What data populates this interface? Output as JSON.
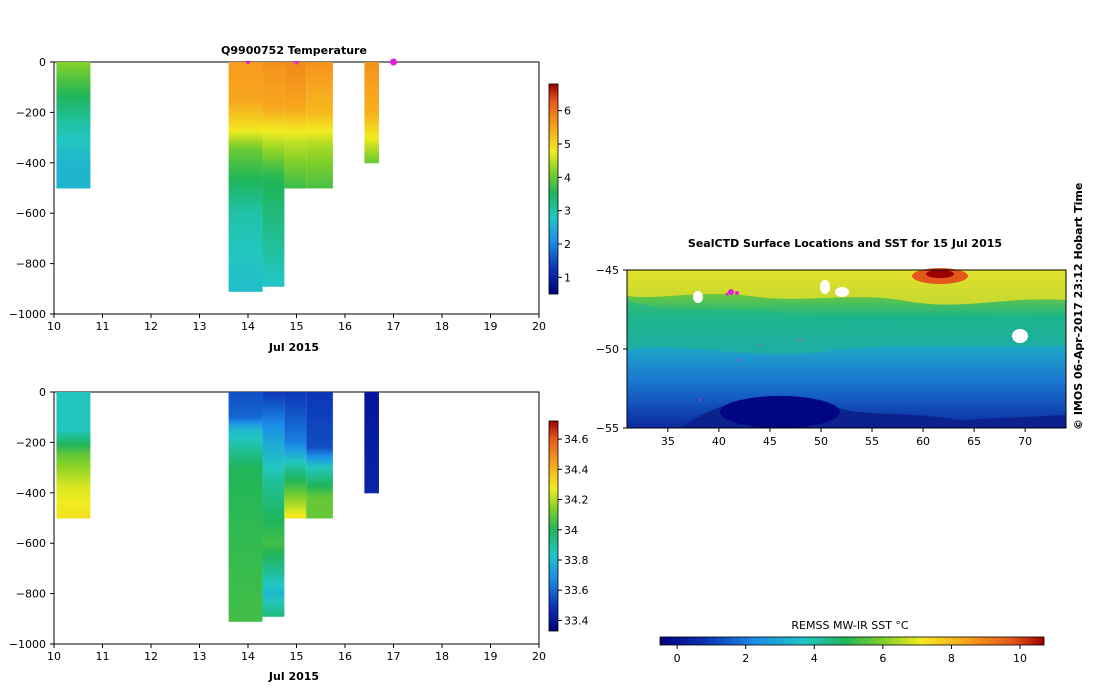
{
  "title": "Q9900752  Temperature",
  "xlabel": "Jul 2015",
  "map_title": "SealCTD Surface Locations and SST for 15 Jul 2015",
  "sst_label": "REMSS MW-IR SST °C",
  "credit": "© IMOS 06-Apr-2017 23:12 Hobart Time",
  "chart_data": [
    {
      "type": "heatmap",
      "variable": "Temperature",
      "xlim": [
        10,
        20
      ],
      "ylim": [
        -1000,
        0
      ],
      "xticks": [
        "10",
        "11",
        "12",
        "13",
        "14",
        "15",
        "16",
        "17",
        "18",
        "19",
        "20"
      ],
      "yticks": [
        "0",
        "−200",
        "−400",
        "−600",
        "−800",
        "−1000"
      ],
      "colorbar_ticks": [
        "1",
        "2",
        "3",
        "4",
        "5",
        "6"
      ],
      "colorbar_range": [
        0.5,
        6.8
      ],
      "surface_markers": [
        14.0,
        15.0,
        17.0
      ],
      "profiles": [
        {
          "x0": 10.05,
          "x1": 10.75,
          "depth": -500,
          "stops": [
            [
              0,
              4.2
            ],
            [
              120,
              3.6
            ],
            [
              250,
              3.0
            ],
            [
              400,
              2.6
            ],
            [
              500,
              2.6
            ]
          ]
        },
        {
          "x0": 13.6,
          "x1": 14.3,
          "depth": -910,
          "stops": [
            [
              0,
              5.6
            ],
            [
              150,
              5.5
            ],
            [
              250,
              5.0
            ],
            [
              350,
              4.0
            ],
            [
              600,
              3.0
            ],
            [
              910,
              2.7
            ]
          ]
        },
        {
          "x0": 14.3,
          "x1": 14.75,
          "depth": -890,
          "stops": [
            [
              0,
              5.7
            ],
            [
              180,
              5.5
            ],
            [
              300,
              4.6
            ],
            [
              450,
              3.6
            ],
            [
              890,
              2.8
            ]
          ]
        },
        {
          "x0": 14.75,
          "x1": 15.2,
          "depth": -500,
          "stops": [
            [
              0,
              5.8
            ],
            [
              180,
              5.5
            ],
            [
              320,
              4.5
            ],
            [
              500,
              3.7
            ]
          ]
        },
        {
          "x0": 15.2,
          "x1": 15.75,
          "depth": -500,
          "stops": [
            [
              0,
              5.7
            ],
            [
              200,
              5.3
            ],
            [
              330,
              4.4
            ],
            [
              500,
              3.8
            ]
          ]
        },
        {
          "x0": 16.4,
          "x1": 16.7,
          "depth": -400,
          "stops": [
            [
              0,
              5.7
            ],
            [
              200,
              5.4
            ],
            [
              300,
              4.8
            ],
            [
              400,
              4.0
            ]
          ]
        }
      ]
    },
    {
      "type": "heatmap",
      "variable": "Salinity",
      "xlim": [
        10,
        20
      ],
      "ylim": [
        -1000,
        0
      ],
      "xticks": [
        "10",
        "11",
        "12",
        "13",
        "14",
        "15",
        "16",
        "17",
        "18",
        "19",
        "20"
      ],
      "yticks": [
        "0",
        "−200",
        "−400",
        "−600",
        "−800",
        "−1000"
      ],
      "colorbar_ticks": [
        "33.4",
        "33.6",
        "33.8",
        "34",
        "34.2",
        "34.4",
        "34.6"
      ],
      "colorbar_range": [
        33.33,
        34.72
      ],
      "profiles": [
        {
          "x0": 10.05,
          "x1": 10.75,
          "depth": -500,
          "stops": [
            [
              0,
              33.85
            ],
            [
              150,
              33.85
            ],
            [
              250,
              34.1
            ],
            [
              380,
              34.25
            ],
            [
              500,
              34.3
            ]
          ]
        },
        {
          "x0": 13.6,
          "x1": 14.3,
          "depth": -910,
          "stops": [
            [
              0,
              33.55
            ],
            [
              100,
              33.6
            ],
            [
              150,
              33.8
            ],
            [
              300,
              34.0
            ],
            [
              910,
              34.05
            ]
          ]
        },
        {
          "x0": 14.3,
          "x1": 14.75,
          "depth": -890,
          "stops": [
            [
              0,
              33.5
            ],
            [
              150,
              33.7
            ],
            [
              350,
              33.9
            ],
            [
              600,
              34.05
            ],
            [
              800,
              33.8
            ],
            [
              890,
              33.95
            ]
          ]
        },
        {
          "x0": 14.75,
          "x1": 15.2,
          "depth": -500,
          "stops": [
            [
              0,
              33.5
            ],
            [
              200,
              33.65
            ],
            [
              300,
              33.9
            ],
            [
              450,
              34.2
            ],
            [
              500,
              34.3
            ]
          ]
        },
        {
          "x0": 15.2,
          "x1": 15.75,
          "depth": -500,
          "stops": [
            [
              0,
              33.5
            ],
            [
              220,
              33.55
            ],
            [
              300,
              33.85
            ],
            [
              420,
              34.1
            ],
            [
              500,
              34.1
            ]
          ]
        },
        {
          "x0": 16.4,
          "x1": 16.7,
          "depth": -400,
          "stops": [
            [
              0,
              33.4
            ],
            [
              400,
              33.45
            ]
          ]
        }
      ]
    },
    {
      "type": "heatmap",
      "variable": "SST",
      "xlim": [
        31,
        74
      ],
      "ylim": [
        -55,
        -45
      ],
      "xticks": [
        "35",
        "40",
        "45",
        "50",
        "55",
        "60",
        "65",
        "70"
      ],
      "yticks": [
        "−45",
        "−50",
        "−55"
      ],
      "colorbar_ticks": [
        "0",
        "2",
        "4",
        "6",
        "8",
        "10"
      ],
      "colorbar_range": [
        -0.5,
        10.7
      ]
    }
  ]
}
